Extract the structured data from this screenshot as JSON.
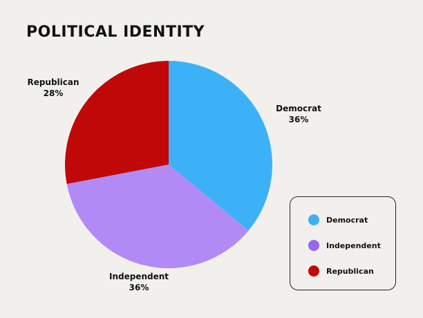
{
  "chart_data": {
    "type": "pie",
    "title": "POLITICAL IDENTITY",
    "slices": [
      {
        "label": "Democrat",
        "value": 36,
        "display": "36%",
        "color": "#3db1f8"
      },
      {
        "label": "Independent",
        "value": 36,
        "display": "36%",
        "color": "#b28af5"
      },
      {
        "label": "Republican",
        "value": 28,
        "display": "28%",
        "color": "#c10808"
      }
    ],
    "legend": {
      "placement": "bottom-right",
      "items": [
        {
          "label": "Democrat",
          "color": "#3db1f8"
        },
        {
          "label": "Independent",
          "color": "#9966f0"
        },
        {
          "label": "Republican",
          "color": "#c10808"
        }
      ]
    }
  }
}
